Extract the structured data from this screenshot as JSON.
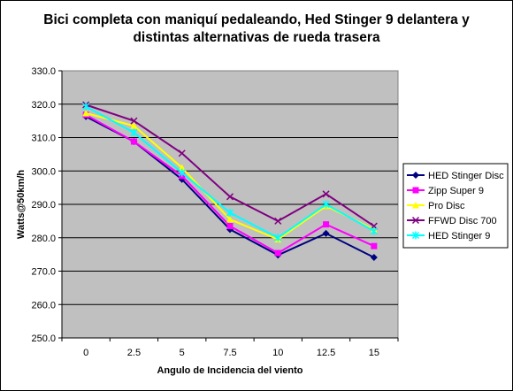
{
  "chart_data": {
    "type": "line",
    "title_line1": "Bici completa con maniquí pedaleando, Hed Stinger 9 delantera y",
    "title_line2": "distintas alternativas de rueda trasera",
    "xlabel": "Angulo de Incidencia del viento",
    "ylabel": "Watts@50km/h",
    "categories": [
      "0",
      "2.5",
      "5",
      "7.5",
      "10",
      "12.5",
      "15"
    ],
    "yticks": [
      "250.0",
      "260.0",
      "270.0",
      "280.0",
      "290.0",
      "300.0",
      "310.0",
      "320.0",
      "330.0"
    ],
    "ylim": [
      250,
      330
    ],
    "grid": "horizontal",
    "plot_background": "#c0c0c0",
    "legend_position": "right",
    "series": [
      {
        "name": "HED Stinger Disc",
        "color": "#000080",
        "marker": "diamond",
        "values": [
          316.3,
          308.8,
          297.5,
          282.5,
          274.8,
          281.3,
          274.1
        ]
      },
      {
        "name": "Zipp Super 9",
        "color": "#ff00ff",
        "marker": "square",
        "values": [
          316.8,
          308.8,
          298.5,
          283.5,
          275.4,
          284.0,
          277.5
        ]
      },
      {
        "name": "Pro Disc",
        "color": "#ffff00",
        "marker": "triangle",
        "values": [
          317.3,
          313.5,
          301.0,
          285.5,
          279.5,
          289.5,
          282.5
        ]
      },
      {
        "name": "FFWD Disc 700",
        "color": "#800080",
        "marker": "x",
        "values": [
          319.8,
          315.0,
          305.3,
          292.3,
          285.0,
          293.1,
          283.5
        ]
      },
      {
        "name": "HED  Stinger 9",
        "color": "#00ffff",
        "marker": "star",
        "values": [
          319.3,
          311.5,
          299.5,
          287.5,
          280.0,
          290.0,
          282.0
        ]
      }
    ]
  }
}
